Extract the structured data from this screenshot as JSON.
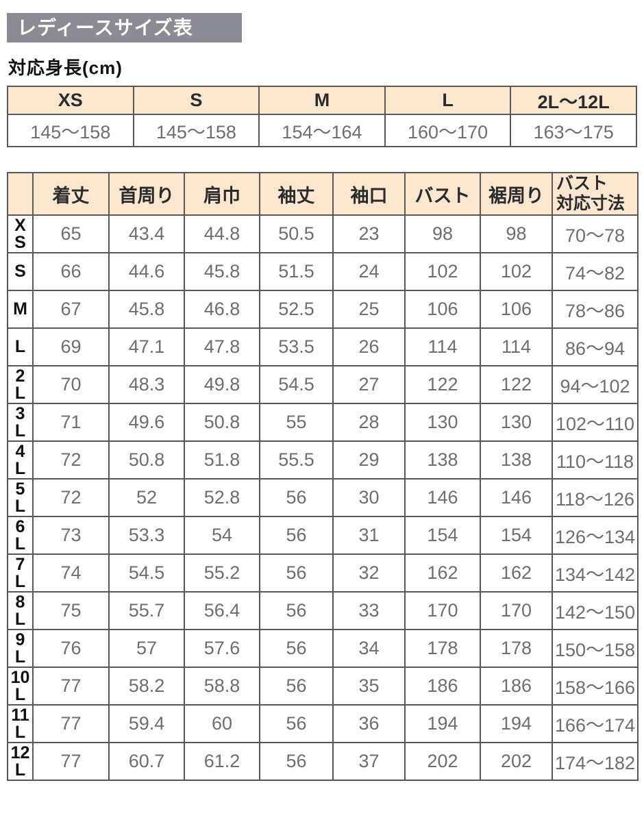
{
  "page": {
    "title": "レディースサイズ表",
    "subtitle": "対応身長(cm)"
  },
  "colors": {
    "title_bar_bg": "#8b8b95",
    "title_bar_text": "#ffffff",
    "header_cell_bg": "#fbe7d0",
    "border": "#58585a",
    "value_text": "#6f6f6f",
    "label_text": "#111111"
  },
  "height_table": {
    "columns": [
      "XS",
      "S",
      "M",
      "L",
      "2L〜12L"
    ],
    "values": [
      "145〜158",
      "145〜158",
      "154〜164",
      "160〜170",
      "163〜175"
    ]
  },
  "size_table": {
    "corner_label": "",
    "columns": [
      "着丈",
      "首周り",
      "肩巾",
      "袖丈",
      "袖口",
      "バスト",
      "裾周り",
      "バスト\n対応寸法"
    ],
    "rows": [
      {
        "size": "XS",
        "label": "X\nS",
        "values": [
          "65",
          "43.4",
          "44.8",
          "50.5",
          "23",
          "98",
          "98",
          "70〜78"
        ]
      },
      {
        "size": "S",
        "label": "S",
        "values": [
          "66",
          "44.6",
          "45.8",
          "51.5",
          "24",
          "102",
          "102",
          "74〜82"
        ]
      },
      {
        "size": "M",
        "label": "M",
        "values": [
          "67",
          "45.8",
          "46.8",
          "52.5",
          "25",
          "106",
          "106",
          "78〜86"
        ]
      },
      {
        "size": "L",
        "label": "L",
        "values": [
          "69",
          "47.1",
          "47.8",
          "53.5",
          "26",
          "114",
          "114",
          "86〜94"
        ]
      },
      {
        "size": "2L",
        "label": "2\nL",
        "values": [
          "70",
          "48.3",
          "49.8",
          "54.5",
          "27",
          "122",
          "122",
          "94〜102"
        ]
      },
      {
        "size": "3L",
        "label": "3\nL",
        "values": [
          "71",
          "49.6",
          "50.8",
          "55",
          "28",
          "130",
          "130",
          "102〜110"
        ]
      },
      {
        "size": "4L",
        "label": "4\nL",
        "values": [
          "72",
          "50.8",
          "51.8",
          "55.5",
          "29",
          "138",
          "138",
          "110〜118"
        ]
      },
      {
        "size": "5L",
        "label": "5\nL",
        "values": [
          "72",
          "52",
          "52.8",
          "56",
          "30",
          "146",
          "146",
          "118〜126"
        ]
      },
      {
        "size": "6L",
        "label": "6\nL",
        "values": [
          "73",
          "53.3",
          "54",
          "56",
          "31",
          "154",
          "154",
          "126〜134"
        ]
      },
      {
        "size": "7L",
        "label": "7\nL",
        "values": [
          "74",
          "54.5",
          "55.2",
          "56",
          "32",
          "162",
          "162",
          "134〜142"
        ]
      },
      {
        "size": "8L",
        "label": "8\nL",
        "values": [
          "75",
          "55.7",
          "56.4",
          "56",
          "33",
          "170",
          "170",
          "142〜150"
        ]
      },
      {
        "size": "9L",
        "label": "9\nL",
        "values": [
          "76",
          "57",
          "57.6",
          "56",
          "34",
          "178",
          "178",
          "150〜158"
        ]
      },
      {
        "size": "10L",
        "label": "10\nL",
        "values": [
          "77",
          "58.2",
          "58.8",
          "56",
          "35",
          "186",
          "186",
          "158〜166"
        ]
      },
      {
        "size": "11L",
        "label": "11\nL",
        "values": [
          "77",
          "59.4",
          "60",
          "56",
          "36",
          "194",
          "194",
          "166〜174"
        ]
      },
      {
        "size": "12L",
        "label": "12\nL",
        "values": [
          "77",
          "60.7",
          "61.2",
          "56",
          "37",
          "202",
          "202",
          "174〜182"
        ]
      }
    ]
  }
}
